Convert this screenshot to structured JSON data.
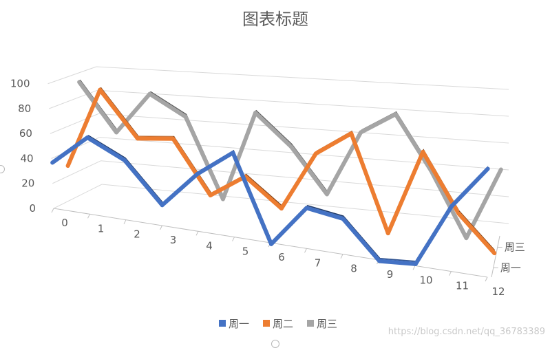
{
  "chart_data": {
    "type": "line",
    "subtype": "3d-line",
    "title": "图表标题",
    "categories": [
      "0",
      "1",
      "2",
      "3",
      "4",
      "5",
      "6",
      "7",
      "8",
      "9",
      "10",
      "11",
      "12"
    ],
    "series": [
      {
        "name": "周一",
        "color": "#4472C4",
        "values": [
          38,
          62,
          48,
          17,
          45,
          65,
          0,
          31,
          27,
          0,
          2,
          47,
          77
        ]
      },
      {
        "name": "周二",
        "color": "#ED7D31",
        "values": [
          30,
          95,
          59,
          62,
          21,
          39,
          18,
          63,
          81,
          10,
          73,
          31,
          6
        ]
      },
      {
        "name": "周三",
        "color": "#A5A5A5",
        "values": [
          94,
          55,
          89,
          73,
          10,
          81,
          57,
          23,
          73,
          89,
          49,
          2,
          55
        ]
      }
    ],
    "ylim": [
      0,
      100
    ],
    "yticks": [
      "0",
      "20",
      "40",
      "60",
      "80",
      "100"
    ],
    "depth_axis_labels": [
      "周一",
      "周三"
    ],
    "grid": true,
    "legend_position": "bottom"
  },
  "watermark": "https://blog.csdn.net/qq_36783389"
}
